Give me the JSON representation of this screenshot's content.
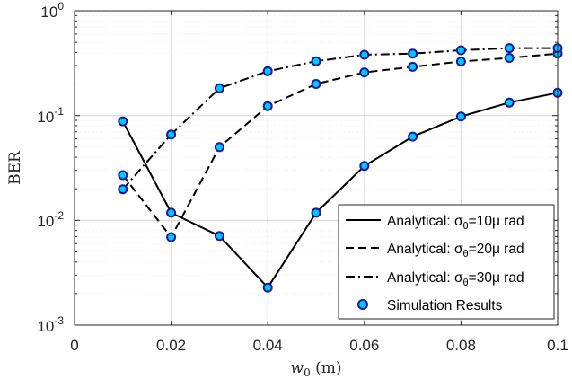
{
  "chart_data": {
    "type": "line",
    "title": "",
    "xlabel": "w0 (m)",
    "xlabel_parts": {
      "main": "w",
      "sub": "0",
      "rest": " (m)"
    },
    "ylabel": "BER",
    "xlim": [
      0,
      0.1
    ],
    "ylim": [
      0.001,
      1
    ],
    "yscale": "log",
    "grid": true,
    "x": [
      0.01,
      0.02,
      0.03,
      0.04,
      0.05,
      0.06,
      0.07,
      0.08,
      0.09,
      0.1
    ],
    "x_ticks": [
      "0",
      "0.02",
      "0.04",
      "0.06",
      "0.08",
      "0.1"
    ],
    "y_ticks": [
      {
        "base": "10",
        "exp": "-3"
      },
      {
        "base": "10",
        "exp": "-2"
      },
      {
        "base": "10",
        "exp": "-1"
      },
      {
        "base": "10",
        "exp": "0"
      }
    ],
    "series": [
      {
        "name": "Analytical: σθ=10μ rad",
        "label_prefix": "Analytical: σ",
        "label_sub": "θ",
        "label_suffix": "=10μ rad",
        "style": "solid",
        "values": [
          0.088,
          0.0118,
          0.0071,
          0.00228,
          0.0118,
          0.033,
          0.063,
          0.098,
          0.133,
          0.165
        ]
      },
      {
        "name": "Analytical: σθ=20μ rad",
        "label_prefix": "Analytical: σ",
        "label_sub": "θ",
        "label_suffix": "=20μ rad",
        "style": "dashed",
        "values": [
          0.027,
          0.0069,
          0.05,
          0.123,
          0.2,
          0.258,
          0.292,
          0.328,
          0.355,
          0.39
        ]
      },
      {
        "name": "Analytical: σθ=30μ rad",
        "label_prefix": "Analytical: σ",
        "label_sub": "θ",
        "label_suffix": "=30μ rad",
        "style": "dashdot",
        "values": [
          0.0198,
          0.066,
          0.182,
          0.265,
          0.33,
          0.38,
          0.39,
          0.42,
          0.44,
          0.44
        ]
      }
    ],
    "simulation_legend": "Simulation Results",
    "legend_position": "bottom-right"
  }
}
